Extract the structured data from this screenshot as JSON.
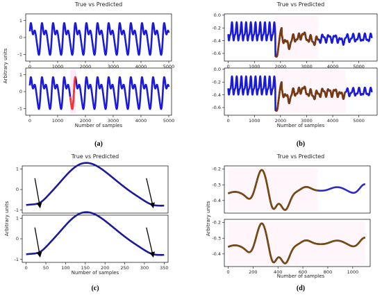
{
  "chart_data": [
    {
      "id": "a",
      "type": "line",
      "caption": "(a)",
      "title": "True vs Predicted",
      "xlabel": "Number of samples",
      "ylabel": "Arbitrary units",
      "colors": {
        "true": "#1a1adb",
        "predicted": "#ff3333",
        "highlight": "#ff88dd"
      },
      "panels": [
        {
          "xlim": [
            -150,
            5100
          ],
          "ylim": [
            -1.4,
            1.4
          ],
          "xticks": [
            "0",
            "1000",
            "2000",
            "3000",
            "4000",
            "5000"
          ],
          "xtick_values": [
            0,
            1000,
            2000,
            3000,
            4000,
            5000
          ],
          "yticks": [
            "1",
            "0",
            "-1"
          ],
          "ytick_values": [
            1,
            0,
            -1
          ],
          "curve": {
            "kind": "periodic",
            "xmax": 5000,
            "cycles": 12.5,
            "amp": 1.1
          },
          "predicted_segments": []
        },
        {
          "xlim": [
            -150,
            5100
          ],
          "ylim": [
            -1.4,
            1.4
          ],
          "xticks": [
            "0",
            "1000",
            "2000",
            "3000",
            "4000",
            "5000"
          ],
          "xtick_values": [
            0,
            1000,
            2000,
            3000,
            4000,
            5000
          ],
          "yticks": [
            "1",
            "0",
            "-1"
          ],
          "ytick_values": [
            1,
            0,
            -1
          ],
          "curve": {
            "kind": "periodic",
            "xmax": 5000,
            "cycles": 12.5,
            "amp": 1.1
          },
          "predicted_segments": [
            [
              1450,
              1650
            ]
          ]
        }
      ]
    },
    {
      "id": "b",
      "type": "line",
      "caption": "(b)",
      "title": "True vs Predicted",
      "xlabel": "Number of samples",
      "ylabel": "",
      "colors": {
        "true": "#1a1adb",
        "predicted": "#7a3a0a",
        "highlight": "#ffccee"
      },
      "panels": [
        {
          "xlim": [
            -150,
            5700
          ],
          "ylim": [
            -0.72,
            0.02
          ],
          "xticks": [
            "0",
            "1000",
            "2000",
            "3000",
            "4000",
            "5000"
          ],
          "xtick_values": [
            0,
            1000,
            2000,
            3000,
            4000,
            5000
          ],
          "yticks": [
            "0.0",
            "-0.2",
            "-0.4",
            "-0.6"
          ],
          "ytick_values": [
            0.0,
            -0.2,
            -0.4,
            -0.6
          ],
          "curve": {
            "kind": "wave_b",
            "xmax": 5500
          },
          "predicted_segments": [
            [
              1800,
              3450
            ]
          ]
        },
        {
          "xlim": [
            -150,
            5700
          ],
          "ylim": [
            -0.72,
            0.02
          ],
          "xticks": [
            "0",
            "1000",
            "2000",
            "3000",
            "4000",
            "5000"
          ],
          "xtick_values": [
            0,
            1000,
            2000,
            3000,
            4000,
            5000
          ],
          "yticks": [
            "0.0",
            "-0.2",
            "-0.4",
            "-0.6"
          ],
          "ytick_values": [
            0.0,
            -0.2,
            -0.4,
            -0.6
          ],
          "curve": {
            "kind": "wave_b",
            "xmax": 5500
          },
          "predicted_segments": [
            [
              1800,
              4500
            ]
          ]
        }
      ]
    },
    {
      "id": "c",
      "type": "line",
      "caption": "(c)",
      "title": "True vs Predicted",
      "xlabel": "Number of samples",
      "ylabel": "Arbitrary units",
      "colors": {
        "true": "#1a1a9a",
        "predicted": "#1a1a9a",
        "highlight": "#ff66ee"
      },
      "panels": [
        {
          "xlim": [
            -10,
            360
          ],
          "ylim": [
            -1.15,
            1.15
          ],
          "xticks": [],
          "xtick_values": [],
          "yticks": [
            "1",
            "0",
            "-1"
          ],
          "ytick_values": [
            1,
            0,
            -1
          ],
          "curve": {
            "kind": "wave_c",
            "xmax": 350
          },
          "predicted_segments": [],
          "arrows": [
            {
              "from": [
                22,
                0.55
              ],
              "to": [
                35,
                -0.85
              ]
            },
            {
              "from": [
                305,
                0.55
              ],
              "to": [
                322,
                -0.85
              ]
            }
          ]
        },
        {
          "xlim": [
            -10,
            360
          ],
          "ylim": [
            -1.15,
            1.15
          ],
          "xticks": [
            "0",
            "50",
            "100",
            "150",
            "200",
            "250",
            "300",
            "350"
          ],
          "xtick_values": [
            0,
            50,
            100,
            150,
            200,
            250,
            300,
            350
          ],
          "yticks": [
            "1",
            "0",
            "-1"
          ],
          "ytick_values": [
            1,
            0,
            -1
          ],
          "curve": {
            "kind": "wave_c",
            "xmax": 350
          },
          "predicted_segments": [],
          "arrows": [
            {
              "from": [
                22,
                0.55
              ],
              "to": [
                35,
                -0.85
              ]
            },
            {
              "from": [
                305,
                0.55
              ],
              "to": [
                322,
                -0.85
              ]
            }
          ]
        }
      ]
    },
    {
      "id": "d",
      "type": "line",
      "caption": "(d)",
      "title": "True vs Predicted",
      "xlabel": "Number of samples",
      "ylabel": "Arbitrary units",
      "colors": {
        "true": "#2a2acb",
        "predicted": "#7a4a0a",
        "highlight": "#ffccf0"
      },
      "panels": [
        {
          "xlim": [
            -30,
            1140
          ],
          "ylim": [
            -0.48,
            -0.18
          ],
          "xticks": [],
          "xtick_values": [],
          "yticks": [
            "-0.2",
            "-0.3",
            "-0.4"
          ],
          "ytick_values": [
            -0.2,
            -0.3,
            -0.4
          ],
          "curve": {
            "kind": "wave_d",
            "xmax": 1100
          },
          "predicted_segments": [
            [
              0,
              720
            ]
          ]
        },
        {
          "xlim": [
            -30,
            1140
          ],
          "ylim": [
            -0.48,
            -0.18
          ],
          "xticks": [
            "0",
            "200",
            "400",
            "600",
            "800",
            "1000"
          ],
          "xtick_values": [
            0,
            200,
            400,
            600,
            800,
            1000
          ],
          "yticks": [
            "-0.2",
            "-0.3",
            "-0.4"
          ],
          "ytick_values": [
            -0.2,
            -0.3,
            -0.4
          ],
          "curve": {
            "kind": "wave_d",
            "xmax": 1100
          },
          "predicted_segments": [
            [
              0,
              1100
            ]
          ]
        }
      ]
    }
  ]
}
